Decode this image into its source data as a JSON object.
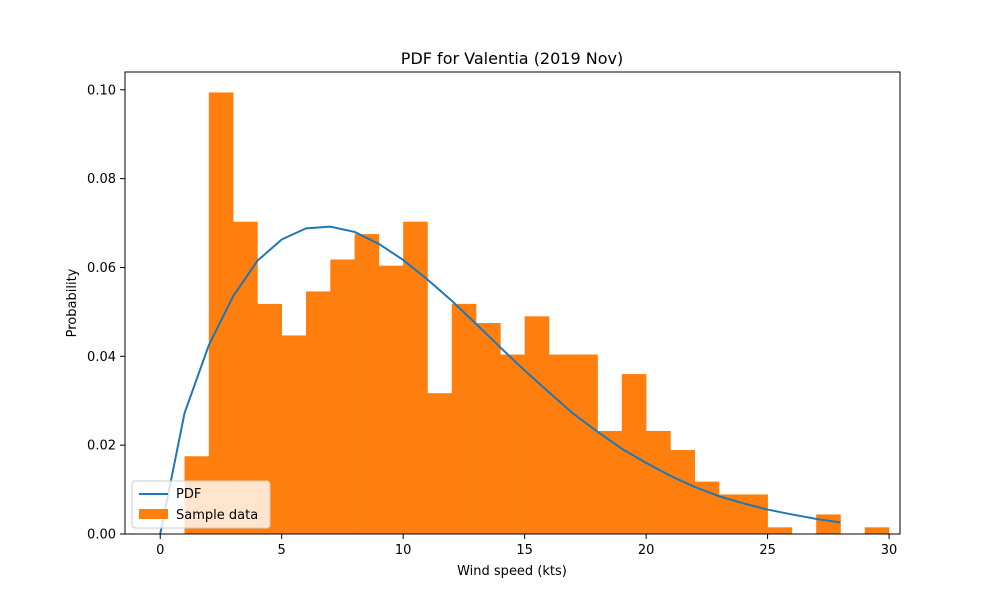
{
  "chart_data": {
    "type": "bar",
    "title": "PDF for Valentia (2019 Nov)",
    "xlabel": "Wind speed (kts)",
    "ylabel": "Probability",
    "xlim": [
      -1.45,
      30.45
    ],
    "ylim": [
      0,
      0.104
    ],
    "x_ticks": [
      0,
      5,
      10,
      15,
      20,
      25,
      30
    ],
    "y_ticks": [
      0.0,
      0.02,
      0.04,
      0.06,
      0.08,
      0.1
    ],
    "y_tick_labels": [
      "0.00",
      "0.02",
      "0.04",
      "0.06",
      "0.08",
      "0.10"
    ],
    "histogram": {
      "name": "Sample data",
      "color": "#ff7f0e",
      "bins": [
        {
          "start": 1,
          "end": 2,
          "value": 0.0175
        },
        {
          "start": 2,
          "end": 3,
          "value": 0.0994
        },
        {
          "start": 3,
          "end": 4,
          "value": 0.0703
        },
        {
          "start": 4,
          "end": 5,
          "value": 0.0518
        },
        {
          "start": 5,
          "end": 6,
          "value": 0.0447
        },
        {
          "start": 6,
          "end": 7,
          "value": 0.0546
        },
        {
          "start": 7,
          "end": 8,
          "value": 0.0618
        },
        {
          "start": 8,
          "end": 9,
          "value": 0.0675
        },
        {
          "start": 9,
          "end": 10,
          "value": 0.0604
        },
        {
          "start": 10,
          "end": 11,
          "value": 0.0703
        },
        {
          "start": 11,
          "end": 12,
          "value": 0.0317
        },
        {
          "start": 12,
          "end": 13,
          "value": 0.0518
        },
        {
          "start": 13,
          "end": 14,
          "value": 0.0475
        },
        {
          "start": 14,
          "end": 15,
          "value": 0.0404
        },
        {
          "start": 15,
          "end": 16,
          "value": 0.049
        },
        {
          "start": 16,
          "end": 17,
          "value": 0.0404
        },
        {
          "start": 17,
          "end": 18,
          "value": 0.0404
        },
        {
          "start": 18,
          "end": 19,
          "value": 0.0232
        },
        {
          "start": 19,
          "end": 20,
          "value": 0.036
        },
        {
          "start": 20,
          "end": 21,
          "value": 0.0232
        },
        {
          "start": 21,
          "end": 22,
          "value": 0.0189
        },
        {
          "start": 22,
          "end": 23,
          "value": 0.0118
        },
        {
          "start": 23,
          "end": 24,
          "value": 0.0089
        },
        {
          "start": 24,
          "end": 25,
          "value": 0.0089
        },
        {
          "start": 25,
          "end": 26,
          "value": 0.0015
        },
        {
          "start": 26,
          "end": 27,
          "value": 0
        },
        {
          "start": 27,
          "end": 28,
          "value": 0.0044
        },
        {
          "start": 28,
          "end": 29,
          "value": 0
        },
        {
          "start": 29,
          "end": 30,
          "value": 0.0015
        }
      ]
    },
    "pdf_line": {
      "name": "PDF",
      "color": "#1f77b4",
      "points": [
        [
          0,
          0.0
        ],
        [
          1,
          0.0272
        ],
        [
          2,
          0.0425
        ],
        [
          3,
          0.0535
        ],
        [
          4,
          0.0615
        ],
        [
          5,
          0.0663
        ],
        [
          6,
          0.0688
        ],
        [
          7,
          0.0692
        ],
        [
          8,
          0.068
        ],
        [
          9,
          0.0653
        ],
        [
          10,
          0.0617
        ],
        [
          11,
          0.0573
        ],
        [
          12,
          0.0525
        ],
        [
          13,
          0.0473
        ],
        [
          14,
          0.042
        ],
        [
          15,
          0.0368
        ],
        [
          16,
          0.0319
        ],
        [
          17,
          0.0271
        ],
        [
          18,
          0.023
        ],
        [
          19,
          0.0192
        ],
        [
          20,
          0.016
        ],
        [
          21,
          0.0131
        ],
        [
          22,
          0.0106
        ],
        [
          23,
          0.0085
        ],
        [
          24,
          0.0069
        ],
        [
          25,
          0.0055
        ],
        [
          26,
          0.0044
        ],
        [
          27,
          0.0034
        ],
        [
          28,
          0.0026
        ]
      ]
    },
    "legend": {
      "position": "bottom-left",
      "entries": [
        "PDF",
        "Sample data"
      ]
    },
    "grid": false
  }
}
